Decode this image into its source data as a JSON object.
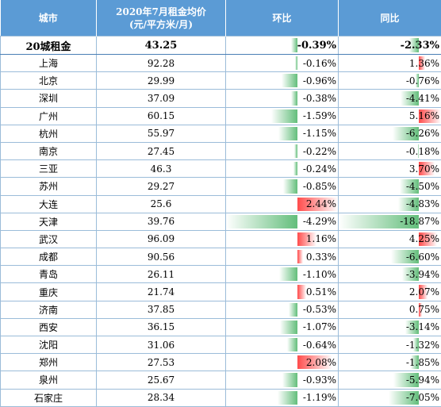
{
  "header": {
    "city": "城市",
    "rent_line1": "2020年7月租金均价",
    "rent_line2": "(元/平方米/月)",
    "mom": "环比",
    "yoy": "同比"
  },
  "total": {
    "city": "20城租金",
    "rent": "43.25",
    "mom": "-0.39%",
    "yoy": "-2.33%",
    "mom_value": -0.39,
    "yoy_value": -2.33
  },
  "rows": [
    {
      "city": "上海",
      "rent": "92.28",
      "mom": "-0.16%",
      "yoy": "1.36%",
      "mom_value": -0.16,
      "yoy_value": 1.36
    },
    {
      "city": "北京",
      "rent": "29.99",
      "mom": "-0.96%",
      "yoy": "-0.76%",
      "mom_value": -0.96,
      "yoy_value": -0.76
    },
    {
      "city": "深圳",
      "rent": "37.09",
      "mom": "-0.38%",
      "yoy": "-4.41%",
      "mom_value": -0.38,
      "yoy_value": -4.41
    },
    {
      "city": "广州",
      "rent": "60.15",
      "mom": "-1.59%",
      "yoy": "5.16%",
      "mom_value": -1.59,
      "yoy_value": 5.16
    },
    {
      "city": "杭州",
      "rent": "55.97",
      "mom": "-1.15%",
      "yoy": "-6.26%",
      "mom_value": -1.15,
      "yoy_value": -6.26
    },
    {
      "city": "南京",
      "rent": "27.45",
      "mom": "-0.22%",
      "yoy": "-0.18%",
      "mom_value": -0.22,
      "yoy_value": -0.18
    },
    {
      "city": "三亚",
      "rent": "46.3",
      "mom": "-0.24%",
      "yoy": "3.70%",
      "mom_value": -0.24,
      "yoy_value": 3.7
    },
    {
      "city": "苏州",
      "rent": "29.27",
      "mom": "-0.85%",
      "yoy": "-4.50%",
      "mom_value": -0.85,
      "yoy_value": -4.5
    },
    {
      "city": "大连",
      "rent": "25.6",
      "mom": "2.44%",
      "yoy": "-4.83%",
      "mom_value": 2.44,
      "yoy_value": -4.83
    },
    {
      "city": "天津",
      "rent": "39.76",
      "mom": "-4.29%",
      "yoy": "-18.87%",
      "mom_value": -4.29,
      "yoy_value": -18.87
    },
    {
      "city": "武汉",
      "rent": "96.09",
      "mom": "1.16%",
      "yoy": "4.25%",
      "mom_value": 1.16,
      "yoy_value": 4.25
    },
    {
      "city": "成都",
      "rent": "90.56",
      "mom": "0.33%",
      "yoy": "-6.60%",
      "mom_value": 0.33,
      "yoy_value": -6.6
    },
    {
      "city": "青岛",
      "rent": "26.11",
      "mom": "-1.10%",
      "yoy": "-3.94%",
      "mom_value": -1.1,
      "yoy_value": -3.94
    },
    {
      "city": "重庆",
      "rent": "21.74",
      "mom": "0.51%",
      "yoy": "2.07%",
      "mom_value": 0.51,
      "yoy_value": 2.07
    },
    {
      "city": "济南",
      "rent": "37.85",
      "mom": "-0.53%",
      "yoy": "0.75%",
      "mom_value": -0.53,
      "yoy_value": 0.75
    },
    {
      "city": "西安",
      "rent": "36.15",
      "mom": "-1.07%",
      "yoy": "-3.14%",
      "mom_value": -1.07,
      "yoy_value": -3.14
    },
    {
      "city": "沈阳",
      "rent": "31.06",
      "mom": "-0.64%",
      "yoy": "-1.32%",
      "mom_value": -0.64,
      "yoy_value": -1.32
    },
    {
      "city": "郑州",
      "rent": "27.53",
      "mom": "2.08%",
      "yoy": "-1.85%",
      "mom_value": 2.08,
      "yoy_value": -1.85
    },
    {
      "city": "泉州",
      "rent": "25.67",
      "mom": "-0.93%",
      "yoy": "-5.94%",
      "mom_value": -0.93,
      "yoy_value": -5.94
    },
    {
      "city": "石家庄",
      "rent": "28.34",
      "mom": "-1.19%",
      "yoy": "-7.05%",
      "mom_value": -1.19,
      "yoy_value": -7.05
    }
  ],
  "colors": {
    "header_bg": "#5b9bd5",
    "negative_bar": "#63be7b",
    "positive_bar": "#ff4b4b",
    "border": "#9bbcd9"
  }
}
